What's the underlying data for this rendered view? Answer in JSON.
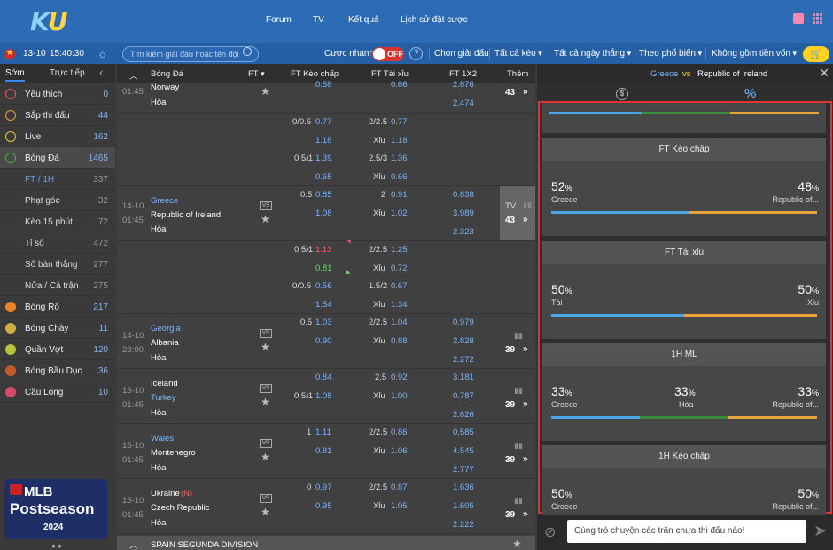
{
  "brand": {
    "logo_a": "K",
    "logo_b": "U"
  },
  "nav": {
    "forum": "Forum",
    "tv": "TV",
    "results": "Kết quả",
    "history": "Lịch sử đặt cược"
  },
  "filter": {
    "date": "13-10",
    "time": "15:40:30",
    "search_placeholder": "Tìm kiếm giải đấu hoặc tên đội",
    "quick_bet": "Cược nhanh",
    "toggle": "OFF",
    "select_league": "Chọn giải đấu",
    "all_bets": "Tất cả kèo",
    "all_days": "Tất cả ngày thắng",
    "popular": "Theo phổ biến",
    "no_capital": "Không gồm tiền vốn"
  },
  "sidebar": {
    "tab_early": "Sớm",
    "tab_live": "Trực tiếp",
    "items": [
      {
        "label": "Yêu thích",
        "count": "0",
        "color": "#e85a5a"
      },
      {
        "label": "Sắp thi đấu",
        "count": "44",
        "color": "#e8a23a"
      },
      {
        "label": "Live",
        "count": "162",
        "color": "#e8c43a"
      },
      {
        "label": "Bóng Đá",
        "count": "1465",
        "color": "#4aa84a"
      }
    ],
    "sub": [
      {
        "label": "FT / 1H",
        "count": "337"
      },
      {
        "label": "Phạt góc",
        "count": "32"
      },
      {
        "label": "Kèo 15 phút",
        "count": "72"
      },
      {
        "label": "Tỉ số",
        "count": "472"
      },
      {
        "label": "Số bàn thắng",
        "count": "277"
      },
      {
        "label": "Nửa / Cả trận",
        "count": "275"
      }
    ],
    "sports": [
      {
        "label": "Bóng Rổ",
        "count": "217",
        "color": "#e8852a"
      },
      {
        "label": "Bóng Chày",
        "count": "11",
        "color": "#cfae4a"
      },
      {
        "label": "Quần Vợt",
        "count": "120",
        "color": "#b8c43a"
      },
      {
        "label": "Bóng Bầu Dục",
        "count": "36",
        "color": "#c45a2a"
      },
      {
        "label": "Cầu Lông",
        "count": "10",
        "color": "#d84a6a"
      }
    ],
    "promo": {
      "line1": "MLB",
      "line2": "Postseason",
      "line3": "2024"
    }
  },
  "table": {
    "headers": {
      "sport": "Bóng Đá",
      "ft": "FT",
      "handicap": "FT Kèo chấp",
      "ou": "FT Tài xỉu",
      "x12": "FT 1X2",
      "more": "Thêm"
    },
    "norway": {
      "time": "01:45",
      "team": "Norway",
      "draw": "Hòa",
      "v1": "0.58",
      "v2": "0.86",
      "v3": "2.876",
      "x3": "2.474",
      "more": "43"
    },
    "extra1": {
      "h1": "0/0.5",
      "o1": "0.77",
      "g1": "2/2.5",
      "u1": "0.77",
      "o2": "1.18",
      "g2": "Xỉu",
      "u2": "1.18",
      "h3": "0.5/1",
      "o3": "1.39",
      "g3": "2.5/3",
      "u3": "1.36",
      "o4": "0.65",
      "g4": "Xỉu",
      "u4": "0.66"
    },
    "greece": {
      "date": "14-10",
      "time": "01:45",
      "home": "Greece",
      "away": "Republic of Ireland",
      "draw": "Hòa",
      "h": "0.5",
      "o1": "0.85",
      "g": "2",
      "u1": "0.91",
      "x1": "0.838",
      "o2": "1.08",
      "g2": "Xỉu",
      "u2": "1.02",
      "x2": "3.989",
      "x3": "2.323",
      "tv": "TV",
      "more": "43"
    },
    "extra2": {
      "h1": "0.5/1",
      "o1": "1.13",
      "g1": "2/2.5",
      "u1": "1.25",
      "o2": "0.81",
      "g2": "Xỉu",
      "u2": "0.72",
      "h3": "0/0.5",
      "o3": "0.56",
      "g3": "1.5/2",
      "u3": "0.67",
      "o4": "1.54",
      "g4": "Xỉu",
      "u4": "1.34"
    },
    "georgia": {
      "date": "14-10",
      "time": "23:00",
      "home": "Georgia",
      "away": "Albania",
      "draw": "Hòa",
      "h": "0.5",
      "o1": "1.03",
      "g": "2/2.5",
      "u1": "1.04",
      "x1": "0.979",
      "o2": "0.90",
      "g2": "Xỉu",
      "u2": "0.88",
      "x2": "2.828",
      "x3": "2.272",
      "more": "39"
    },
    "iceland": {
      "date": "15-10",
      "time": "01:45",
      "home": "Iceland",
      "away": "Turkey",
      "draw": "Hòa",
      "o1": "0.84",
      "g": "2.5",
      "u1": "0.92",
      "x1": "3.181",
      "h2": "0.5/1",
      "o2": "1.08",
      "g2": "Xỉu",
      "u2": "1.00",
      "x2": "0.787",
      "x3": "2.626",
      "more": "39"
    },
    "wales": {
      "date": "15-10",
      "time": "01:45",
      "home": "Wales",
      "away": "Montenegro",
      "draw": "Hòa",
      "h": "1",
      "o1": "1.11",
      "g": "2/2.5",
      "u1": "0.86",
      "x1": "0.585",
      "o2": "0.81",
      "g2": "Xỉu",
      "u2": "1.06",
      "x2": "4.545",
      "x3": "2.777",
      "more": "39"
    },
    "ukraine": {
      "date": "15-10",
      "time": "01:45",
      "home": "Ukraine",
      "neutral": "(N)",
      "away": "Czech Republic",
      "draw": "Hòa",
      "h": "0",
      "o1": "0.97",
      "g": "2/2.5",
      "u1": "0.87",
      "x1": "1.636",
      "o2": "0.95",
      "g2": "Xỉu",
      "u2": "1.05",
      "x2": "1.605",
      "x3": "2.222",
      "more": "39"
    },
    "league": "SPAIN SEGUNDA DIVISION"
  },
  "panel": {
    "home": "Greece",
    "vs": "vs",
    "away": "Republic of Ireland",
    "cards": [
      {
        "title": "FT Kèo chấp",
        "left_pct": "52",
        "left_label": "Greece",
        "right_pct": "48",
        "right_label": "Republic of...",
        "left_share": 52
      },
      {
        "title": "FT Tài xỉu",
        "left_pct": "50",
        "left_label": "Tài",
        "right_pct": "50",
        "right_label": "Xỉu",
        "left_share": 50
      },
      {
        "title": "1H ML",
        "left_pct": "33",
        "left_label": "Greece",
        "mid_pct": "33",
        "mid_label": "Hòa",
        "right_pct": "33",
        "right_label": "Republic of..."
      },
      {
        "title": "1H Kèo chấp",
        "left_pct": "50",
        "left_label": "Greece",
        "right_pct": "50",
        "right_label": "Republic of..."
      }
    ],
    "pct_sign": "%",
    "chat_placeholder": "Cùng trò chuyện các trận chưa thi đấu nào!"
  }
}
